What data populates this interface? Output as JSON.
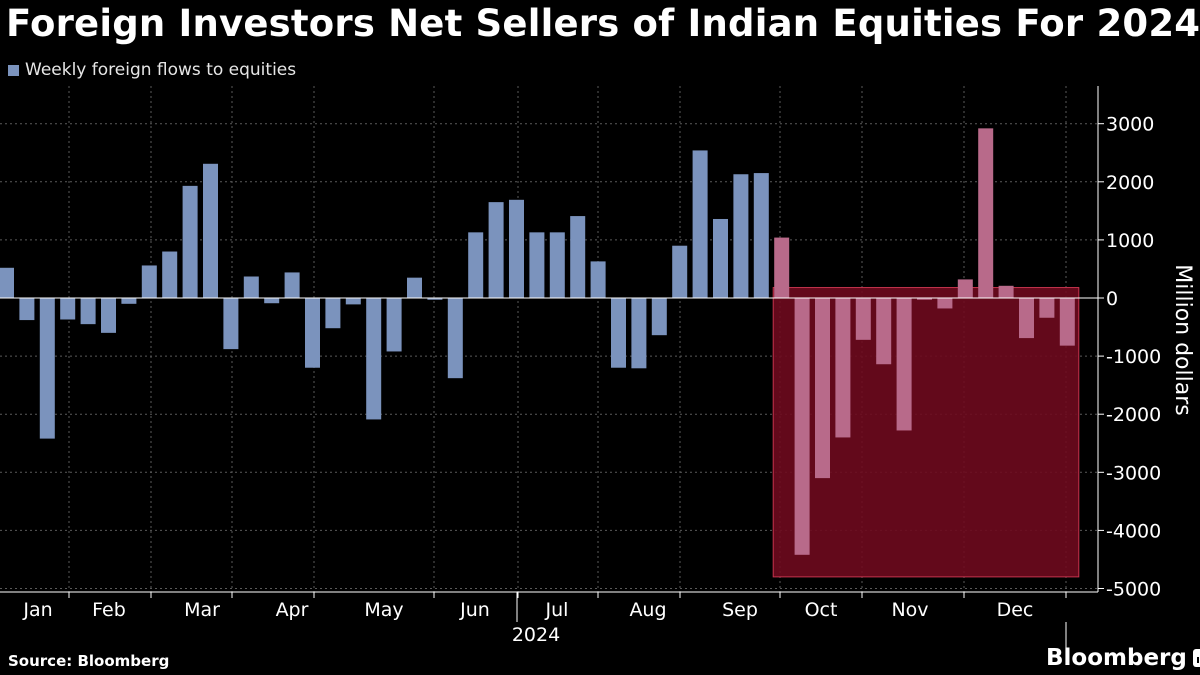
{
  "title": "Foreign Investors Net Sellers of Indian Equities For 2024",
  "source": "Source: Bloomberg",
  "brand": "Bloomberg",
  "brand_icon": "bloomberg-terminal-icon",
  "colors": {
    "bar": "#7b93bd",
    "bar_highlighted": "#b86a8a",
    "highlight_fill": "#6e0a1e",
    "highlight_border": "#c5344e",
    "grid": "#5a5a5a",
    "axis": "#ffffff"
  },
  "chart_data": {
    "type": "bar",
    "title": "Foreign Investors Net Sellers of Indian Equities For 2024",
    "legend": [
      "Weekly foreign flows to equities"
    ],
    "legend_position": "top-left",
    "xlabel": "2024",
    "ylabel": "Million dollars",
    "ylim": [
      -5200,
      3600
    ],
    "yticks": [
      3000,
      2000,
      1000,
      0,
      -1000,
      -2000,
      -3000,
      -4000,
      -5000
    ],
    "ytick_labels": [
      "3000",
      "2000",
      "1000",
      "0",
      "-1000",
      "-2000",
      "-3000",
      "-4000",
      "-5000"
    ],
    "month_labels": [
      "Jan",
      "Feb",
      "Mar",
      "Apr",
      "May",
      "Jun",
      "Jul",
      "Aug",
      "Sep",
      "Oct",
      "Nov",
      "Dec"
    ],
    "grid": true,
    "highlight": {
      "from_week": 38,
      "to_week": 52,
      "y_from": -4800,
      "y_to": 180
    },
    "series": [
      {
        "name": "Weekly foreign flows to equities",
        "values": [
          520,
          -380,
          -2420,
          -370,
          -450,
          -600,
          -100,
          560,
          800,
          1930,
          2310,
          -880,
          370,
          -90,
          440,
          -1200,
          -520,
          -110,
          -2090,
          -920,
          350,
          -30,
          -1380,
          1130,
          1650,
          1690,
          1130,
          1130,
          1410,
          630,
          -1200,
          -1210,
          -640,
          900,
          2540,
          1360,
          2130,
          2150,
          1040,
          -4420,
          -3100,
          -2400,
          -720,
          -1140,
          -2280,
          -30,
          -180,
          320,
          2920,
          210,
          -690,
          -340,
          -820
        ]
      }
    ]
  }
}
